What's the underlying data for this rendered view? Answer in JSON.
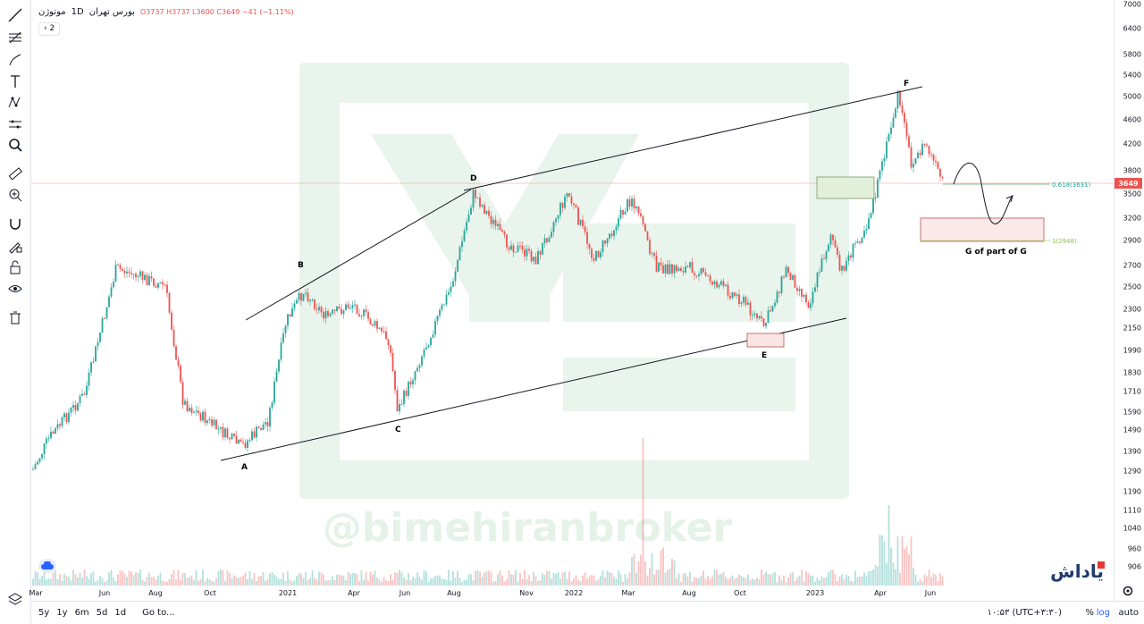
{
  "header": {
    "symbol": "موتوژن",
    "interval": "1D",
    "exchange": "بورس تهران",
    "ohlc": "O3737 H3737 L3600 C3649 −41 (−1.11%)",
    "collapse_label": "› 2"
  },
  "price_axis": {
    "ticks": [
      "7000",
      "6400",
      "5800",
      "5400",
      "5000",
      "4600",
      "4200",
      "3800",
      "3500",
      "3200",
      "2900",
      "2700",
      "2500",
      "2300",
      "2150",
      "1990",
      "1830",
      "1710",
      "1590",
      "1490",
      "1390",
      "1290",
      "1190",
      "1110",
      "1040",
      "960",
      "906"
    ],
    "last_price": "3649",
    "last_price_color": "#ef5350"
  },
  "time_axis": {
    "labels": [
      "Mar",
      "Jun",
      "Aug",
      "Oct",
      "2021",
      "Apr",
      "Jun",
      "Aug",
      "Nov",
      "2022",
      "Mar",
      "Aug",
      "Oct",
      "2023",
      "Apr",
      "Jun"
    ]
  },
  "annotations": {
    "points": [
      "A",
      "B",
      "C",
      "D",
      "E",
      "F"
    ],
    "fib_0618": "0.618(3631)",
    "fib_1": "1(2948)",
    "g_label": "G of part of G",
    "watermark": "@bimehiranbroker"
  },
  "bottom_bar": {
    "ranges": [
      "5y",
      "1y",
      "6m",
      "5d",
      "1d"
    ],
    "goto": "Go to...",
    "clock": "۱۰:۵۳ (UTC+۳:۳۰)",
    "percent": "%",
    "log": "log",
    "auto": "auto"
  },
  "colors": {
    "up": "#26a69a",
    "down": "#ef5350",
    "accent": "#2962ff"
  },
  "toolbar_icons": [
    "trend-line-icon",
    "fib-icon",
    "brush-icon",
    "text-icon",
    "pattern-icon",
    "measure-icon",
    "zoom-icon",
    "ruler-icon",
    "zoom-in-icon",
    "magnet-icon",
    "lock-drawing-icon",
    "lock-icon",
    "eye-icon",
    "trash-icon"
  ]
}
